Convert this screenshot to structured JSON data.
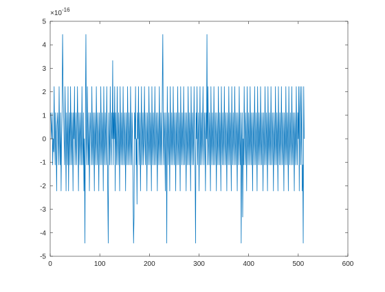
{
  "chart_data": {
    "type": "line",
    "color": "#0072bd",
    "y_multiplier": "×10",
    "y_multiplier_exponent": "-16",
    "xlim": [
      0,
      600
    ],
    "xticks": [
      0,
      100,
      200,
      300,
      400,
      500,
      600
    ],
    "ylim": [
      -5,
      5
    ],
    "yticks": [
      -5,
      -4,
      -3,
      -2,
      -1,
      0,
      1,
      2,
      3,
      4,
      5
    ],
    "x": [
      1,
      2,
      3,
      4,
      5,
      6,
      7,
      8,
      9,
      10,
      11,
      12,
      13,
      14,
      15,
      16,
      17,
      18,
      19,
      20,
      21,
      22,
      23,
      24,
      25,
      26,
      27,
      28,
      29,
      30,
      31,
      32,
      33,
      34,
      35,
      36,
      37,
      38,
      39,
      40,
      41,
      42,
      43,
      44,
      45,
      46,
      47,
      48,
      49,
      50,
      51,
      52,
      53,
      54,
      55,
      56,
      57,
      58,
      59,
      60,
      61,
      62,
      63,
      64,
      65,
      66,
      67,
      68,
      69,
      70,
      71,
      72,
      73,
      74,
      75,
      76,
      77,
      78,
      79,
      80,
      81,
      82,
      83,
      84,
      85,
      86,
      87,
      88,
      89,
      90,
      91,
      92,
      93,
      94,
      95,
      96,
      97,
      98,
      99,
      100,
      101,
      102,
      103,
      104,
      105,
      106,
      107,
      108,
      109,
      110,
      111,
      112,
      113,
      114,
      115,
      116,
      117,
      118,
      119,
      120,
      121,
      122,
      123,
      124,
      125,
      126,
      127,
      128,
      129,
      130,
      131,
      132,
      133,
      134,
      135,
      136,
      137,
      138,
      139,
      140,
      141,
      142,
      143,
      144,
      145,
      146,
      147,
      148,
      149,
      150,
      151,
      152,
      153,
      154,
      155,
      156,
      157,
      158,
      159,
      160,
      161,
      162,
      163,
      164,
      165,
      166,
      167,
      168,
      169,
      170,
      171,
      172,
      173,
      174,
      175,
      176,
      177,
      178,
      179,
      180,
      181,
      182,
      183,
      184,
      185,
      186,
      187,
      188,
      189,
      190,
      191,
      192,
      193,
      194,
      195,
      196,
      197,
      198,
      199,
      200,
      201,
      202,
      203,
      204,
      205,
      206,
      207,
      208,
      209,
      210,
      211,
      212,
      213,
      214,
      215,
      216,
      217,
      218,
      219,
      220,
      221,
      222,
      223,
      224,
      225,
      226,
      227,
      228,
      229,
      230,
      231,
      232,
      233,
      234,
      235,
      236,
      237,
      238,
      239,
      240,
      241,
      242,
      243,
      244,
      245,
      246,
      247,
      248,
      249,
      250,
      251,
      252,
      253,
      254,
      255,
      256,
      257,
      258,
      259,
      260,
      261,
      262,
      263,
      264,
      265,
      266,
      267,
      268,
      269,
      270,
      271,
      272,
      273,
      274,
      275,
      276,
      277,
      278,
      279,
      280,
      281,
      282,
      283,
      284,
      285,
      286,
      287,
      288,
      289,
      290,
      291,
      292,
      293,
      294,
      295,
      296,
      297,
      298,
      299,
      300,
      301,
      302,
      303,
      304,
      305,
      306,
      307,
      308,
      309,
      310,
      311,
      312,
      313,
      314,
      315,
      316,
      317,
      318,
      319,
      320,
      321,
      322,
      323,
      324,
      325,
      326,
      327,
      328,
      329,
      330,
      331,
      332,
      333,
      334,
      335,
      336,
      337,
      338,
      339,
      340,
      341,
      342,
      343,
      344,
      345,
      346,
      347,
      348,
      349,
      350,
      351,
      352,
      353,
      354,
      355,
      356,
      357,
      358,
      359,
      360,
      361,
      362,
      363,
      364,
      365,
      366,
      367,
      368,
      369,
      370,
      371,
      372,
      373,
      374,
      375,
      376,
      377,
      378,
      379,
      380,
      381,
      382,
      383,
      384,
      385,
      386,
      387,
      388,
      389,
      390,
      391,
      392,
      393,
      394,
      395,
      396,
      397,
      398,
      399,
      400,
      401,
      402,
      403,
      404,
      405,
      406,
      407,
      408,
      409,
      410,
      411,
      412,
      413,
      414,
      415,
      416,
      417,
      418,
      419,
      420,
      421,
      422,
      423,
      424,
      425,
      426,
      427,
      428,
      429,
      430,
      431,
      432,
      433,
      434,
      435,
      436,
      437,
      438,
      439,
      440,
      441,
      442,
      443,
      444,
      445,
      446,
      447,
      448,
      449,
      450,
      451,
      452,
      453,
      454,
      455,
      456,
      457,
      458,
      459,
      460,
      461,
      462,
      463,
      464,
      465,
      466,
      467,
      468,
      469,
      470,
      471,
      472,
      473,
      474,
      475,
      476,
      477,
      478,
      479,
      480,
      481,
      482,
      483,
      484,
      485,
      486,
      487,
      488,
      489,
      490,
      491,
      492,
      493,
      494,
      495,
      496,
      497,
      498,
      499,
      500,
      501,
      502,
      503,
      504,
      505,
      506,
      507,
      508,
      509,
      510,
      511,
      512
    ],
    "values": [
      1.11,
      0.555,
      0,
      1.11,
      -1.11,
      0,
      -0.555,
      2.22,
      0,
      -1.11,
      1.11,
      0,
      -2.22,
      0.555,
      1.11,
      0,
      -1.11,
      2.22,
      0,
      -1.11,
      1.11,
      -2.22,
      0,
      1.11,
      4.44,
      2.22,
      1.11,
      0,
      -1.11,
      2.22,
      0,
      -2.22,
      1.11,
      0,
      -1.11,
      2.22,
      -2.22,
      0,
      1.11,
      -1.11,
      2.22,
      0,
      -1.11,
      1.11,
      0,
      -2.22,
      1.11,
      0,
      2.22,
      -1.11,
      0,
      1.11,
      -1.11,
      0,
      2.22,
      0,
      -2.22,
      1.11,
      0,
      -1.11,
      1.11,
      0,
      -1.11,
      2.22,
      0,
      -1.11,
      1.11,
      -2.22,
      0,
      -4.44,
      1.11,
      4.44,
      0,
      -1.11,
      2.22,
      0,
      -1.11,
      1.11,
      -2.22,
      0,
      1.11,
      0,
      -1.11,
      2.22,
      0,
      -1.11,
      1.11,
      0,
      -2.22,
      1.11,
      0,
      -1.11,
      2.22,
      0,
      -1.11,
      1.11,
      0,
      -2.22,
      1.11,
      0,
      -1.11,
      2.22,
      0,
      -1.11,
      1.11,
      0,
      -2.22,
      2.22,
      0,
      -1.11,
      1.11,
      0,
      -1.11,
      2.22,
      0,
      -2.22,
      -4.44,
      1.11,
      0,
      -1.11,
      2.22,
      0,
      -1.11,
      1.11,
      0,
      3.33,
      -1.11,
      1.11,
      0,
      2.22,
      -2.22,
      1.11,
      0,
      -1.11,
      2.22,
      0,
      -1.11,
      1.11,
      0,
      -2.22,
      2.22,
      0,
      -1.11,
      1.11,
      0,
      -1.11,
      2.22,
      0,
      -1.11,
      1.11,
      0,
      -2.22,
      1.11,
      0,
      -1.11,
      2.22,
      0,
      -1.11,
      1.11,
      0,
      -1.11,
      2.22,
      0,
      -1.11,
      1.11,
      0,
      -2.22,
      -4.44,
      -3.33,
      1.11,
      0,
      2.22,
      -1.11,
      0,
      -2.78,
      1.11,
      0,
      2.22,
      -1.11,
      0,
      1.11,
      -2.22,
      0,
      2.22,
      -1.11,
      0,
      1.11,
      -1.11,
      0,
      2.22,
      0,
      -1.11,
      1.11,
      0,
      -2.22,
      1.11,
      0,
      -1.11,
      2.22,
      0,
      -1.11,
      1.11,
      0,
      -2.22,
      2.22,
      0,
      -1.11,
      1.11,
      0,
      -1.11,
      2.22,
      0,
      -1.11,
      1.11,
      0,
      -2.22,
      1.11,
      0,
      -1.11,
      2.22,
      0,
      -1.11,
      1.11,
      0,
      -1.11,
      2.22,
      4.44,
      0,
      -1.11,
      1.11,
      0,
      -2.22,
      1.11,
      0,
      -4.44,
      2.22,
      0,
      -1.11,
      1.11,
      0,
      -2.22,
      2.22,
      0,
      -1.11,
      1.11,
      0,
      -1.11,
      2.22,
      0,
      -1.11,
      1.11,
      0,
      -2.22,
      1.11,
      0,
      -1.11,
      2.22,
      0,
      -1.11,
      1.11,
      0,
      -2.22,
      2.22,
      0,
      -1.11,
      1.11,
      0,
      -1.11,
      2.22,
      0,
      -1.11,
      1.11,
      0,
      -2.22,
      1.11,
      0,
      -1.11,
      2.22,
      0,
      -1.11,
      1.11,
      0,
      -2.22,
      2.22,
      0,
      -1.11,
      1.11,
      0,
      -1.11,
      2.22,
      0,
      -1.11,
      -4.44,
      1.11,
      0,
      2.22,
      -1.11,
      0,
      1.11,
      -2.22,
      0,
      2.22,
      -1.11,
      0,
      1.11,
      -1.11,
      0,
      2.22,
      0,
      -1.11,
      1.11,
      0,
      -2.22,
      1.11,
      0,
      4.44,
      -1.11,
      2.22,
      0,
      -1.11,
      1.11,
      0,
      -2.22,
      2.22,
      0,
      -1.11,
      1.11,
      0,
      -1.11,
      2.22,
      0,
      -1.11,
      1.11,
      0,
      -2.22,
      1.11,
      0,
      -1.11,
      2.22,
      0,
      -1.11,
      1.11,
      0,
      -2.22,
      2.22,
      0,
      -1.11,
      1.11,
      0,
      -1.11,
      2.22,
      0,
      -1.11,
      1.11,
      0,
      -2.22,
      1.11,
      0,
      -1.11,
      2.22,
      0,
      -1.11,
      1.11,
      0,
      -2.22,
      2.22,
      0,
      -1.11,
      1.11,
      0,
      -1.11,
      2.22,
      0,
      -1.11,
      1.11,
      0,
      -2.22,
      1.11,
      0,
      -1.11,
      2.22,
      0,
      -1.11,
      1.11,
      -4.44,
      0,
      1.11,
      -3.33,
      0,
      -1.11,
      2.22,
      0,
      -1.11,
      1.11,
      0,
      -2.22,
      2.22,
      0,
      -1.11,
      1.11,
      0,
      -1.11,
      2.22,
      0,
      -1.11,
      1.11,
      0,
      -2.22,
      1.11,
      0,
      -1.11,
      2.22,
      0,
      -1.11,
      1.11,
      0,
      -2.22,
      2.22,
      0,
      -1.11,
      1.11,
      0,
      -1.11,
      2.22,
      0,
      -1.11,
      1.11,
      0,
      -2.22,
      1.11,
      0,
      -1.11,
      2.22,
      0,
      -1.11,
      1.11,
      0,
      -2.22,
      2.22,
      0,
      -1.11,
      1.11,
      0,
      -1.11,
      2.22,
      0,
      -1.11,
      1.11,
      0,
      -2.22,
      1.11,
      0,
      -1.11,
      2.22,
      0,
      -1.11,
      1.11,
      0,
      -2.22,
      2.22,
      0,
      -1.11,
      1.11,
      0,
      -1.11,
      2.22,
      0,
      -1.11,
      1.11,
      0,
      -2.22,
      1.11,
      0,
      -1.11,
      2.22,
      0,
      -1.11,
      1.11,
      0,
      -2.22,
      2.22,
      0,
      -1.11,
      1.11,
      0,
      -1.11,
      2.22,
      0,
      -1.11,
      1.11,
      0,
      -2.22,
      1.11,
      0,
      -1.11,
      2.22,
      0,
      -1.11,
      1.11,
      0,
      2.22,
      -2.22,
      1.11,
      2.22,
      -1.11,
      0,
      2.22,
      -2.22,
      -1.11,
      -4.44,
      2.22,
      0
    ]
  }
}
